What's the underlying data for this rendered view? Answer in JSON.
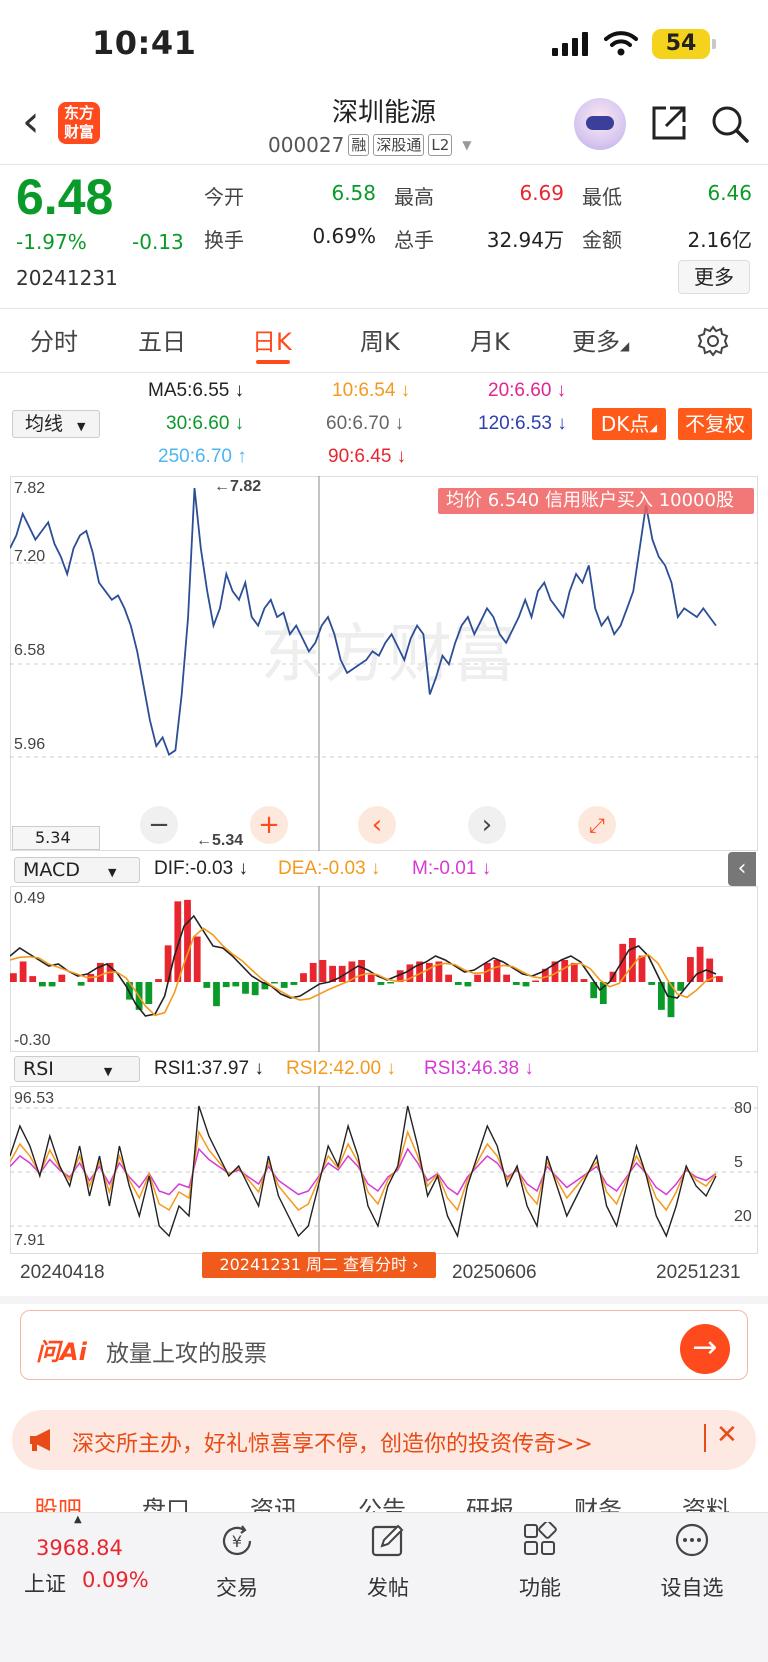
{
  "status_bar": {
    "time": "10:41",
    "battery": "54"
  },
  "header": {
    "logo_line1": "东方",
    "logo_line2": "财富",
    "name": "深圳能源",
    "code": "000027",
    "tags": [
      "融",
      "深股通",
      "L2"
    ]
  },
  "quote": {
    "price": "6.48",
    "change_pct": "-1.97%",
    "change": "-0.13",
    "date": "20241231",
    "fields": [
      {
        "label": "今开",
        "value": "6.58",
        "color": "#0a9a2a"
      },
      {
        "label": "最高",
        "value": "6.69",
        "color": "#e8262f"
      },
      {
        "label": "最低",
        "value": "6.46",
        "color": "#0a9a2a"
      },
      {
        "label": "换手",
        "value": "0.69%",
        "color": "#222222"
      },
      {
        "label": "总手",
        "value": "32.94万",
        "color": "#222222"
      },
      {
        "label": "金额",
        "value": "2.16亿",
        "color": "#222222"
      }
    ],
    "more_label": "更多"
  },
  "tabs": [
    "分时",
    "五日",
    "日K",
    "周K",
    "月K",
    "更多"
  ],
  "active_tab": "日K",
  "ma_legend": {
    "select_label": "均线",
    "ma5": "MA5:6.55",
    "ma10": "10:6.54",
    "ma20": "20:6.60",
    "ma30": "30:6.60",
    "ma60": "60:6.70",
    "ma120": "120:6.53",
    "ma250": "250:6.70",
    "ma90": "90:6.45",
    "colors": {
      "ma5": "#222222",
      "ma10": "#f39a1e",
      "ma20": "#e0248f",
      "ma30": "#0a9a2a",
      "ma60": "#666666",
      "ma120": "#2d3fb4",
      "ma250": "#4bb6f0",
      "ma90": "#e8262f"
    },
    "dk_button": "DK点",
    "fq_button": "不复权"
  },
  "main_chart": {
    "y_labels": [
      "7.82",
      "7.20",
      "6.58",
      "5.96"
    ],
    "low_box": "5.34",
    "high_marker": "←7.82",
    "low_marker": "←5.34",
    "overlay_banner": "均价 6.540 信用账户买入 10000股",
    "watermark": "东方财富",
    "line_color": "#2c4e96"
  },
  "macd": {
    "select_label": "MACD",
    "dif": "DIF:-0.03",
    "dea": "DEA:-0.03",
    "m": "M:-0.01",
    "y_top": "0.49",
    "y_bottom": "-0.30"
  },
  "rsi": {
    "select_label": "RSI",
    "rsi1": "RSI1:37.97",
    "rsi2": "RSI2:42.00",
    "rsi3": "RSI3:46.38",
    "y_top": "96.53",
    "y_bottom": "7.91",
    "right_labels": [
      "80",
      "5",
      "20"
    ]
  },
  "x_axis": {
    "labels": [
      "20240418",
      "20250606",
      "20251231"
    ],
    "cursor_tooltip": "20241231 周二 查看分时"
  },
  "ai": {
    "logo": "问Ai",
    "placeholder": "放量上攻的股票"
  },
  "banner": {
    "text": "深交所主办，好礼惊喜享不停，创造你的投资传奇>>"
  },
  "sub_tabs": [
    "股吧",
    "盘口",
    "资讯",
    "公告",
    "研报",
    "财务",
    "资料"
  ],
  "bottom_nav": {
    "index_value": "3968.84",
    "index_name": "上证",
    "index_pct": "0.09%",
    "items": [
      "交易",
      "发帖",
      "功能",
      "设自选"
    ]
  }
}
